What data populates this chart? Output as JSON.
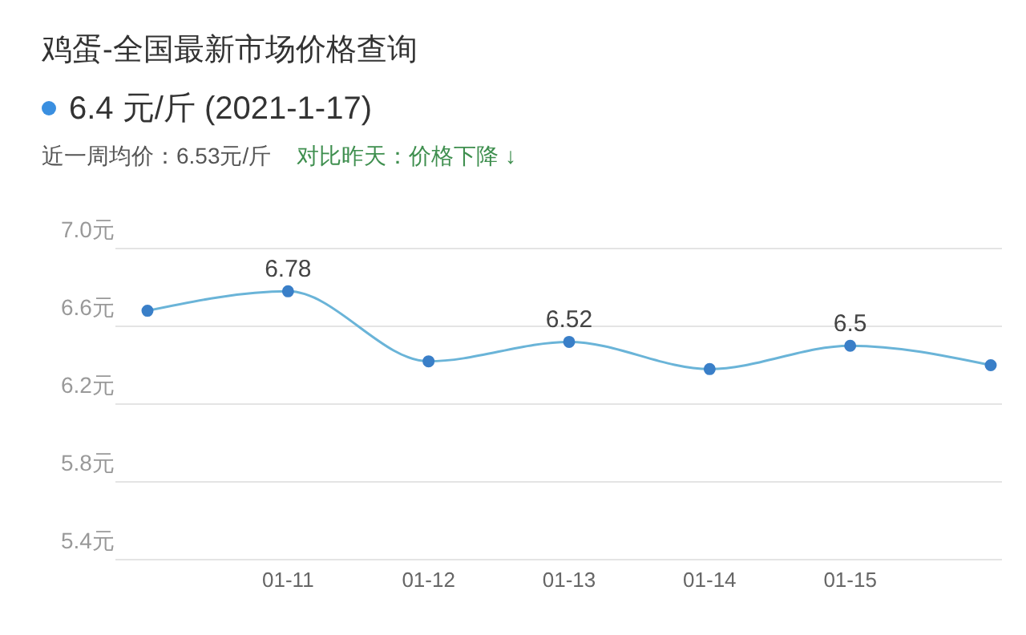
{
  "chart_data": {
    "type": "line",
    "title": "鸡蛋-全国最新市场价格查询",
    "subtitle": "6.4 元/斤 (2021-1-17)",
    "annotations": [
      "近一周均价：6.53元/斤",
      "对比昨天：价格下降 ↓"
    ],
    "categories": [
      null,
      "01-11",
      "01-12",
      "01-13",
      "01-14",
      "01-15",
      null
    ],
    "series": [
      {
        "color": "#6ab4d8",
        "values": [
          6.68,
          6.78,
          6.42,
          6.52,
          6.38,
          6.5,
          6.4
        ],
        "value_labels": [
          null,
          "6.78",
          null,
          "6.52",
          null,
          "6.5",
          null
        ]
      }
    ],
    "ylim": [
      5.4,
      7.0
    ],
    "yticks": [
      {
        "value": 5.4,
        "label": "5.4元"
      },
      {
        "value": 5.8,
        "label": "5.8元"
      },
      {
        "value": 6.2,
        "label": "6.2元"
      },
      {
        "value": 6.6,
        "label": "6.6元"
      },
      {
        "value": 7.0,
        "label": "7.0元"
      }
    ],
    "grid": "y",
    "marker": "circle",
    "line_style": "solid",
    "legend": false
  }
}
